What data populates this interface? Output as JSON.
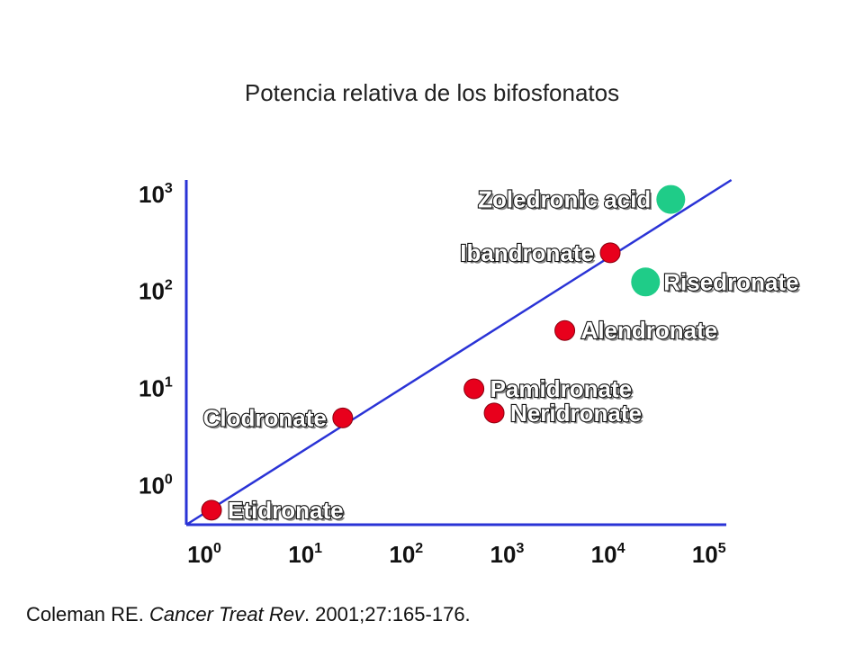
{
  "title": "Potencia relativa de los bifosfonatos",
  "citation": {
    "authors": "Coleman RE.",
    "journal": "Cancer Treat Rev",
    "details": ". 2001;27:165-176."
  },
  "colors": {
    "axis": "#2a33d6",
    "trend": "#2a33d6",
    "red_point": "#e8001c",
    "red_outline": "#8a0010",
    "green_point": "#1fcc88"
  },
  "chart_data": {
    "type": "scatter",
    "title": "Potencia relativa de los bifosfonatos",
    "xlabel": "",
    "ylabel": "",
    "x_scale": "log",
    "y_scale": "log",
    "xlim": [
      0,
      5.35
    ],
    "ylim": [
      -0.2,
      3.35
    ],
    "x_ticks": [
      {
        "base": "10",
        "exp": "0",
        "value": 0
      },
      {
        "base": "10",
        "exp": "1",
        "value": 1
      },
      {
        "base": "10",
        "exp": "2",
        "value": 2
      },
      {
        "base": "10",
        "exp": "3",
        "value": 3
      },
      {
        "base": "10",
        "exp": "4",
        "value": 4
      },
      {
        "base": "10",
        "exp": "5",
        "value": 5
      }
    ],
    "y_ticks": [
      {
        "base": "10",
        "exp": "0",
        "value": 0
      },
      {
        "base": "10",
        "exp": "1",
        "value": 1
      },
      {
        "base": "10",
        "exp": "2",
        "value": 2
      },
      {
        "base": "10",
        "exp": "3",
        "value": 3
      }
    ],
    "trend_line": {
      "x": [
        0,
        5.4
      ],
      "y": [
        -0.2,
        3.35
      ]
    },
    "points": [
      {
        "name": "Etidronate",
        "x_log": 0.25,
        "y_log": -0.05,
        "color": "red",
        "label_side": "right"
      },
      {
        "name": "Clodronate",
        "x_log": 1.55,
        "y_log": 0.9,
        "color": "red",
        "label_side": "left"
      },
      {
        "name": "Pamidronate",
        "x_log": 2.85,
        "y_log": 1.2,
        "color": "red",
        "label_side": "right"
      },
      {
        "name": "Neridronate",
        "x_log": 3.05,
        "y_log": 0.95,
        "color": "red",
        "label_side": "right"
      },
      {
        "name": "Alendronate",
        "x_log": 3.75,
        "y_log": 1.8,
        "color": "red",
        "label_side": "right"
      },
      {
        "name": "Ibandronate",
        "x_log": 4.2,
        "y_log": 2.6,
        "color": "red",
        "label_side": "left"
      },
      {
        "name": "Risedronate",
        "x_log": 4.55,
        "y_log": 2.3,
        "color": "green",
        "label_side": "right"
      },
      {
        "name": "Zoledronic acid",
        "x_log": 4.8,
        "y_log": 3.15,
        "color": "green",
        "label_side": "left"
      }
    ]
  }
}
